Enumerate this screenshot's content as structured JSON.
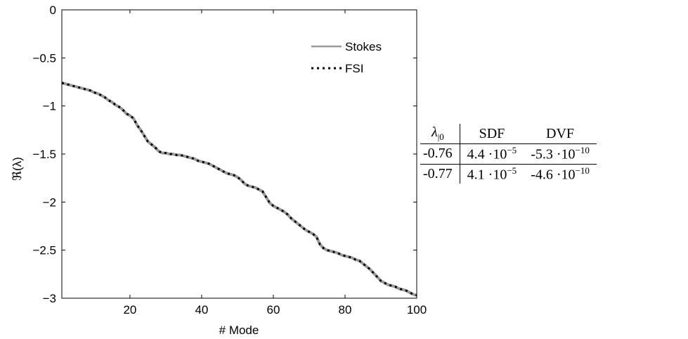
{
  "chart_data": {
    "type": "line",
    "xlabel": "# Mode",
    "ylabel": "ℜ(λ)",
    "xlim": [
      1,
      100
    ],
    "ylim": [
      -3,
      0
    ],
    "xticks": [
      20,
      40,
      60,
      80,
      100
    ],
    "yticks": [
      0,
      -0.5,
      -1,
      -1.5,
      -2,
      -2.5,
      -3
    ],
    "xtick_labels": [
      "20",
      "40",
      "60",
      "80",
      "100"
    ],
    "ytick_labels": [
      "0",
      "−0.5",
      "−1",
      "−1.5",
      "−2",
      "−2.5",
      "−3"
    ],
    "legend_position": "top-right",
    "grid": false,
    "x": [
      1,
      2,
      3,
      4,
      5,
      6,
      7,
      8,
      9,
      10,
      11,
      12,
      13,
      14,
      15,
      16,
      17,
      18,
      19,
      20,
      21,
      22,
      23,
      24,
      25,
      26,
      27,
      28,
      29,
      30,
      31,
      32,
      33,
      34,
      35,
      36,
      37,
      38,
      39,
      40,
      41,
      42,
      43,
      44,
      45,
      46,
      47,
      48,
      49,
      50,
      51,
      52,
      53,
      54,
      55,
      56,
      57,
      58,
      59,
      60,
      61,
      62,
      63,
      64,
      65,
      66,
      67,
      68,
      69,
      70,
      71,
      72,
      73,
      74,
      75,
      76,
      77,
      78,
      79,
      80,
      81,
      82,
      83,
      84,
      85,
      86,
      87,
      88,
      89,
      90,
      91,
      92,
      93,
      94,
      95,
      96,
      97,
      98,
      99,
      100
    ],
    "series": [
      {
        "name": "Stokes",
        "color": "#999999",
        "style": "solid",
        "values": [
          -0.76,
          -0.77,
          -0.78,
          -0.79,
          -0.8,
          -0.81,
          -0.82,
          -0.83,
          -0.84,
          -0.86,
          -0.87,
          -0.89,
          -0.91,
          -0.94,
          -0.96,
          -0.99,
          -1.01,
          -1.04,
          -1.08,
          -1.1,
          -1.13,
          -1.2,
          -1.25,
          -1.31,
          -1.37,
          -1.4,
          -1.43,
          -1.47,
          -1.49,
          -1.49,
          -1.5,
          -1.5,
          -1.51,
          -1.51,
          -1.52,
          -1.53,
          -1.54,
          -1.55,
          -1.57,
          -1.58,
          -1.59,
          -1.6,
          -1.62,
          -1.64,
          -1.66,
          -1.68,
          -1.7,
          -1.71,
          -1.72,
          -1.74,
          -1.77,
          -1.81,
          -1.83,
          -1.84,
          -1.85,
          -1.87,
          -1.89,
          -1.95,
          -2.01,
          -2.04,
          -2.06,
          -2.08,
          -2.1,
          -2.13,
          -2.17,
          -2.2,
          -2.23,
          -2.26,
          -2.29,
          -2.31,
          -2.33,
          -2.36,
          -2.44,
          -2.48,
          -2.5,
          -2.51,
          -2.52,
          -2.53,
          -2.55,
          -2.56,
          -2.57,
          -2.58,
          -2.6,
          -2.61,
          -2.64,
          -2.67,
          -2.7,
          -2.74,
          -2.78,
          -2.82,
          -2.84,
          -2.86,
          -2.87,
          -2.88,
          -2.9,
          -2.91,
          -2.92,
          -2.94,
          -2.96,
          -2.97
        ]
      },
      {
        "name": "FSI",
        "color": "#000000",
        "style": "dotted",
        "values": [
          -0.76,
          -0.77,
          -0.78,
          -0.79,
          -0.8,
          -0.81,
          -0.82,
          -0.83,
          -0.84,
          -0.86,
          -0.87,
          -0.89,
          -0.91,
          -0.94,
          -0.96,
          -0.99,
          -1.01,
          -1.04,
          -1.08,
          -1.1,
          -1.13,
          -1.2,
          -1.25,
          -1.31,
          -1.37,
          -1.4,
          -1.43,
          -1.47,
          -1.49,
          -1.49,
          -1.5,
          -1.5,
          -1.51,
          -1.51,
          -1.52,
          -1.53,
          -1.54,
          -1.55,
          -1.57,
          -1.58,
          -1.59,
          -1.6,
          -1.62,
          -1.64,
          -1.66,
          -1.68,
          -1.7,
          -1.71,
          -1.72,
          -1.74,
          -1.77,
          -1.81,
          -1.83,
          -1.84,
          -1.85,
          -1.87,
          -1.89,
          -1.95,
          -2.01,
          -2.04,
          -2.06,
          -2.08,
          -2.1,
          -2.13,
          -2.17,
          -2.2,
          -2.23,
          -2.26,
          -2.29,
          -2.31,
          -2.33,
          -2.36,
          -2.44,
          -2.48,
          -2.5,
          -2.51,
          -2.52,
          -2.53,
          -2.55,
          -2.56,
          -2.57,
          -2.58,
          -2.6,
          -2.61,
          -2.64,
          -2.67,
          -2.7,
          -2.74,
          -2.78,
          -2.82,
          -2.84,
          -2.86,
          -2.87,
          -2.88,
          -2.9,
          -2.91,
          -2.92,
          -2.94,
          -2.96,
          -2.97
        ]
      }
    ]
  },
  "table": {
    "header": {
      "lambda_sym": "λ",
      "lambda_sub": "|0",
      "col_sdf": "SDF",
      "col_dvf": "DVF"
    },
    "rows": [
      {
        "lambda": "-0.76",
        "sdf_mant": "4.4 ·10",
        "sdf_exp": "−5",
        "dvf_mant": "-5.3 ·10",
        "dvf_exp": "−10"
      },
      {
        "lambda": "-0.77",
        "sdf_mant": "4.1 ·10",
        "sdf_exp": "−5",
        "dvf_mant": "-4.6 ·10",
        "dvf_exp": "−10"
      }
    ]
  }
}
